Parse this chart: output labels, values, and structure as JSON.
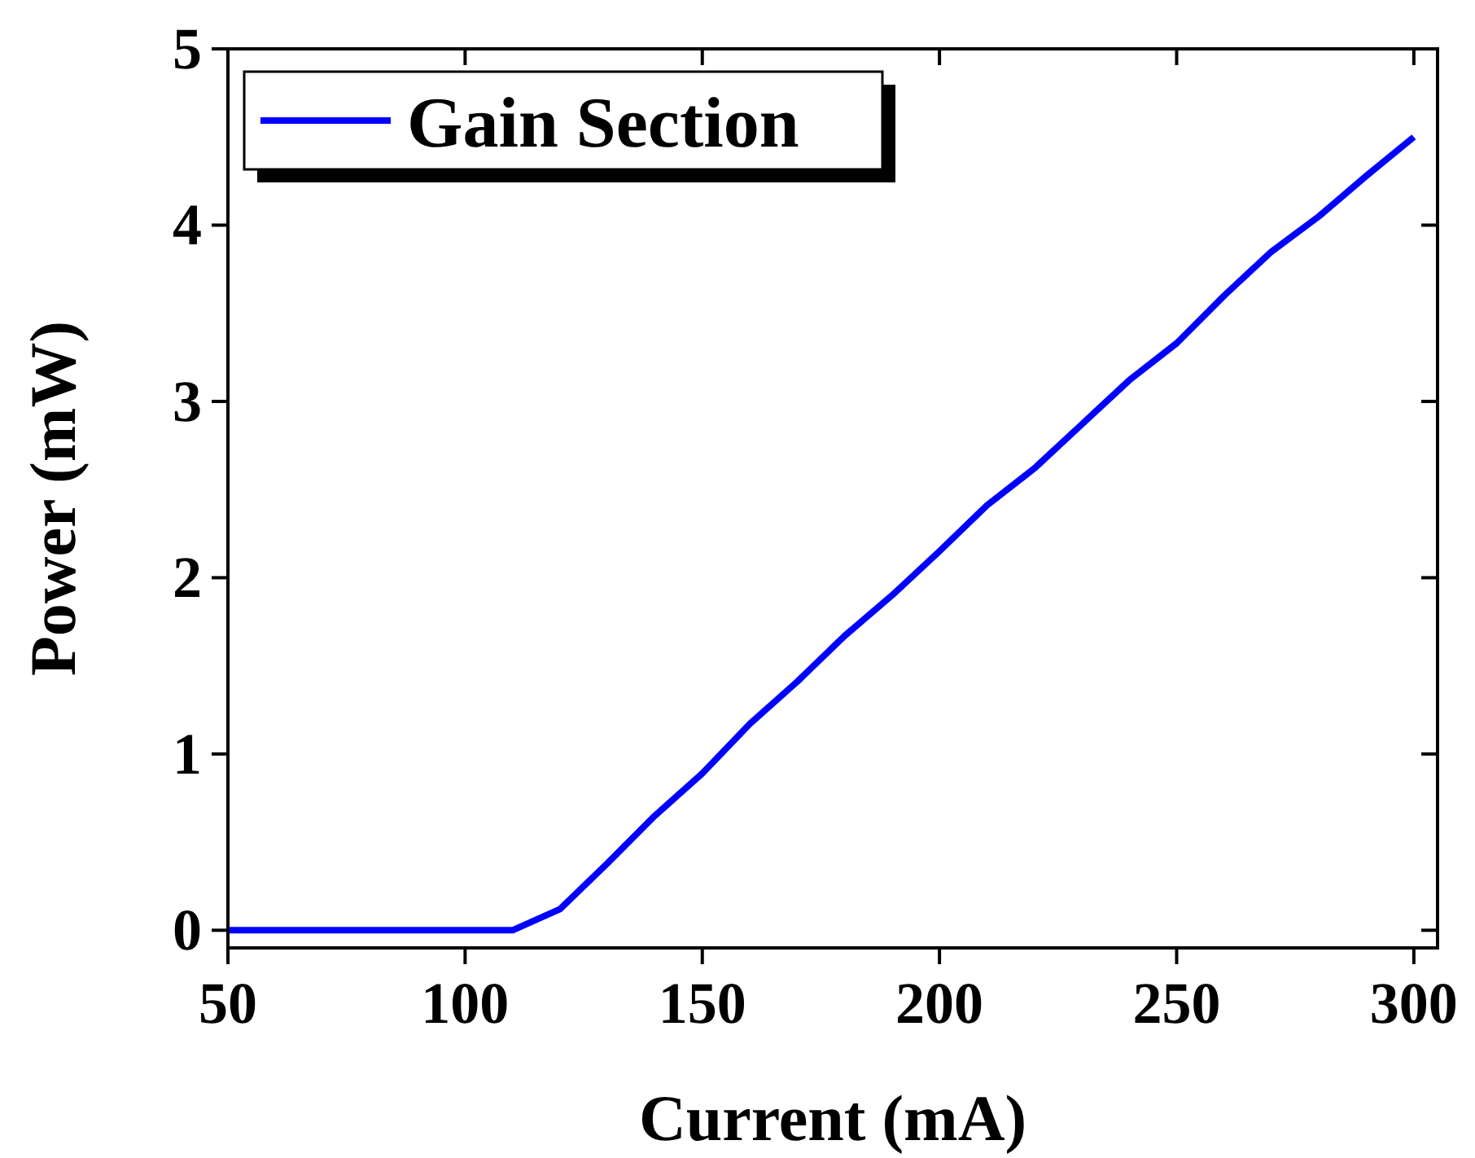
{
  "chart_data": {
    "type": "line",
    "xlabel": "Current (mA)",
    "ylabel": "Power (mW)",
    "x": [
      50,
      60,
      70,
      80,
      90,
      100,
      110,
      120,
      130,
      140,
      150,
      160,
      170,
      180,
      190,
      200,
      210,
      220,
      230,
      240,
      250,
      260,
      270,
      280,
      290,
      300
    ],
    "series": [
      {
        "name": "Gain Section",
        "color": "#0000ff",
        "values": [
          0,
          0,
          0,
          0,
          0,
          0,
          0,
          0.12,
          0.38,
          0.65,
          0.89,
          1.17,
          1.41,
          1.67,
          1.9,
          2.15,
          2.41,
          2.62,
          2.87,
          3.12,
          3.33,
          3.6,
          3.85,
          4.05,
          4.28,
          4.5
        ]
      }
    ],
    "xlim": [
      50,
      305
    ],
    "ylim": [
      -0.1,
      5
    ],
    "xticks": [
      50,
      100,
      150,
      200,
      250,
      300
    ],
    "yticks": [
      0,
      1,
      2,
      3,
      4,
      5
    ],
    "legend": "top left",
    "marker": "none",
    "line_style": "solid",
    "grid": false
  }
}
